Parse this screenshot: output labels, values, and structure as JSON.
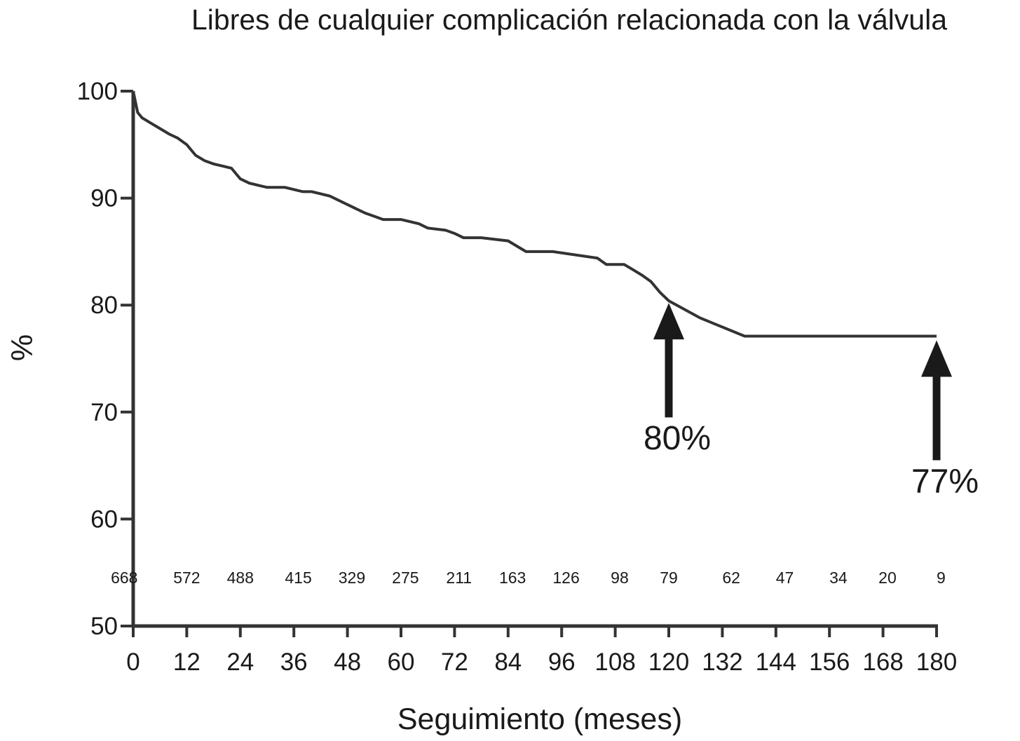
{
  "chart_data": {
    "type": "line",
    "title": "Libres de cualquier complicación relacionada con la válvula",
    "xlabel": "Seguimiento (meses)",
    "ylabel": "%",
    "xlim": [
      0,
      180
    ],
    "ylim": [
      50,
      100
    ],
    "x_ticks": [
      0,
      12,
      24,
      36,
      48,
      60,
      72,
      84,
      96,
      108,
      120,
      132,
      144,
      156,
      168,
      180
    ],
    "y_ticks": [
      50,
      60,
      70,
      80,
      90,
      100
    ],
    "grid": false,
    "legend": "none",
    "line_color": "#333333",
    "series": [
      {
        "x": [
          0,
          0.5,
          1,
          2,
          4,
          6,
          8,
          10,
          11,
          12,
          14,
          16,
          18,
          20,
          22,
          24,
          26,
          28,
          30,
          34,
          38,
          40,
          44,
          46,
          48,
          50,
          52,
          54,
          56,
          60,
          64,
          66,
          70,
          72,
          74,
          78,
          84,
          88,
          94,
          104,
          106,
          110,
          112,
          114,
          116,
          118,
          120,
          127,
          137,
          180
        ],
        "y": [
          100,
          99,
          98,
          97.5,
          97,
          96.5,
          96,
          95.6,
          95.3,
          95,
          94,
          93.5,
          93.2,
          93,
          92.8,
          91.8,
          91.4,
          91.2,
          91,
          91,
          90.6,
          90.6,
          90.2,
          89.8,
          89.4,
          89,
          88.6,
          88.3,
          88,
          88,
          87.6,
          87.2,
          87,
          86.7,
          86.3,
          86.3,
          86,
          85,
          85,
          84.4,
          83.8,
          83.8,
          83.3,
          82.8,
          82.2,
          81.2,
          80.4,
          78.8,
          77.1,
          77.1
        ]
      }
    ],
    "at_risk": {
      "x": [
        0,
        12,
        24,
        36,
        48,
        60,
        72,
        84,
        96,
        108,
        120,
        132,
        144,
        156,
        168,
        180
      ],
      "labels": [
        "668",
        "572",
        "488",
        "415",
        "329",
        "275",
        "211",
        "163",
        "126",
        "98",
        "79",
        "62",
        "47",
        "34",
        "20",
        "9"
      ],
      "x_positions": [
        -2,
        12,
        24,
        37,
        49,
        61,
        73,
        85,
        97,
        109,
        120,
        134,
        146,
        158,
        169,
        181
      ]
    },
    "annotations": [
      {
        "label": "80%",
        "x": 120,
        "y_tip": 80.2,
        "y_tail": 69.5,
        "label_y": 66.5
      },
      {
        "label": "77%",
        "x": 180,
        "y_tip": 76.7,
        "y_tail": 65.5,
        "label_y": 62.5
      }
    ]
  }
}
